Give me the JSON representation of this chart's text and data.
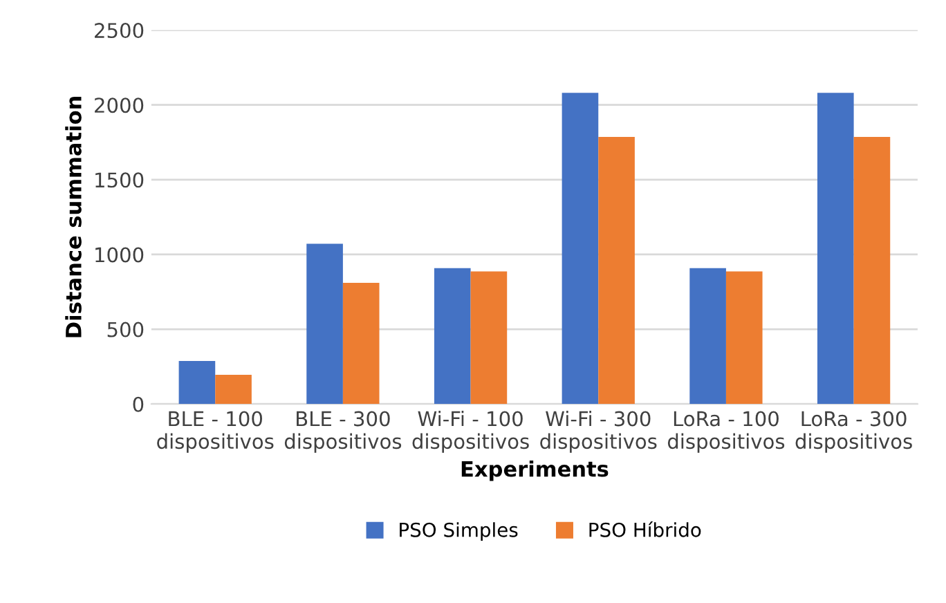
{
  "chart_data": {
    "type": "bar",
    "xlabel": "Experiments",
    "ylabel": "Distance summation",
    "categories": [
      "BLE - 100\ndispositivos",
      "BLE - 300\ndispositivos",
      "Wi-Fi - 100\ndispositivos",
      "Wi-Fi - 300\ndispositivos",
      "LoRa - 100\ndispositivos",
      "LoRa - 300\ndispositivos"
    ],
    "series": [
      {
        "name": "PSO Simples",
        "color": "#4472c4",
        "values": [
          288,
          1072,
          909,
          2081,
          909,
          2081
        ]
      },
      {
        "name": "PSO Híbrido",
        "color": "#ed7d31",
        "values": [
          195,
          810,
          887,
          1786,
          887,
          1786
        ]
      }
    ],
    "ylim": [
      0,
      2500
    ],
    "yticks": [
      0,
      500,
      1000,
      1500,
      2000,
      2500
    ],
    "grid": "y",
    "legend": "bottom"
  }
}
